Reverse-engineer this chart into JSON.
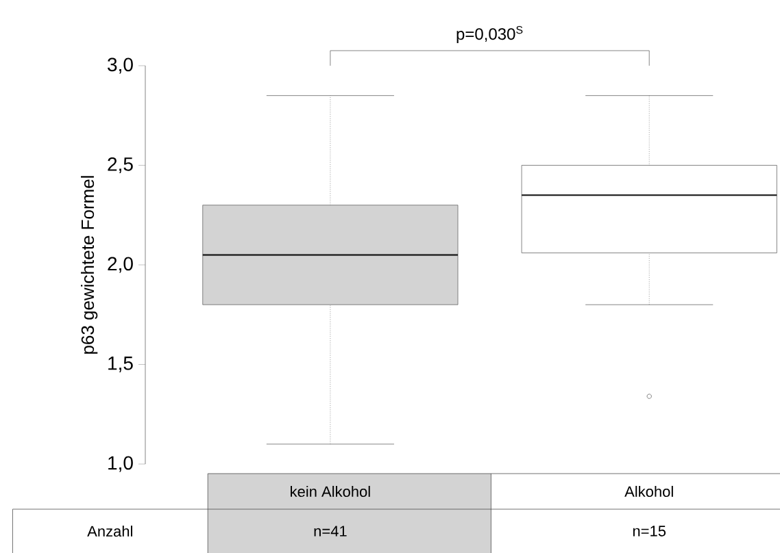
{
  "chart_data": {
    "type": "box",
    "ylabel": "p63 gewichtete Formel",
    "categories": [
      "kein Alkohol",
      "Alkohol"
    ],
    "colors": [
      "#d3d3d3",
      "#ffffff"
    ],
    "boxes": [
      {
        "low": 1.1,
        "q1": 1.8,
        "median": 2.05,
        "q3": 2.3,
        "high": 2.85
      },
      {
        "low": 1.8,
        "q1": 2.06,
        "median": 2.35,
        "q3": 2.5,
        "high": 2.85,
        "outliers": [
          1.34
        ]
      }
    ],
    "ylim": [
      1.0,
      3.0
    ],
    "yticks": [
      {
        "value": 1.0,
        "label": "1,0"
      },
      {
        "value": 1.5,
        "label": "1,5"
      },
      {
        "value": 2.0,
        "label": "2,0"
      },
      {
        "value": 2.5,
        "label": "2,5"
      },
      {
        "value": 3.0,
        "label": "3,0"
      }
    ],
    "annotations": [
      "p=0,030$^{S}$",
      "Anzahl",
      "n=41",
      "n=15"
    ]
  }
}
